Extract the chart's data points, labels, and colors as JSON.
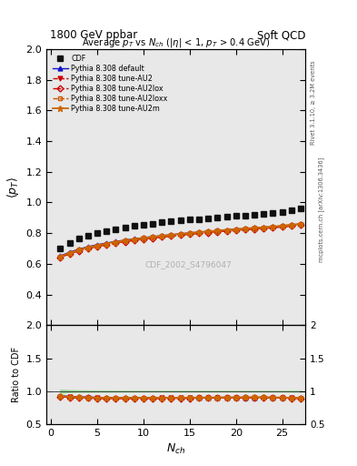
{
  "title_top": "1800 GeV ppbar",
  "title_top_right": "Soft QCD",
  "plot_title": "Average $p_T$ vs $N_{ch}$ ($|\\eta|$ < 1, $p_T$ > 0.4 GeV)",
  "xlabel": "$N_{ch}$",
  "ylabel_main": "$\\langle p_T \\rangle$",
  "ylabel_ratio": "Ratio to CDF",
  "right_label_top": "Rivet 3.1.10, ≥ 3.2M events",
  "right_label_bottom": "mcplots.cern.ch [arXiv:1306.3436]",
  "watermark": "CDF_2002_S4796047",
  "nch": [
    1,
    2,
    3,
    4,
    5,
    6,
    7,
    8,
    9,
    10,
    11,
    12,
    13,
    14,
    15,
    16,
    17,
    18,
    19,
    20,
    21,
    22,
    23,
    24,
    25,
    26,
    27
  ],
  "cdf_pt": [
    0.7,
    0.735,
    0.763,
    0.782,
    0.8,
    0.815,
    0.828,
    0.838,
    0.848,
    0.856,
    0.863,
    0.87,
    0.876,
    0.882,
    0.888,
    0.893,
    0.898,
    0.903,
    0.907,
    0.912,
    0.916,
    0.92,
    0.924,
    0.93,
    0.94,
    0.95,
    0.96
  ],
  "cdf_err": [
    0.015,
    0.01,
    0.008,
    0.007,
    0.006,
    0.006,
    0.005,
    0.005,
    0.005,
    0.004,
    0.004,
    0.004,
    0.004,
    0.004,
    0.004,
    0.004,
    0.004,
    0.004,
    0.004,
    0.004,
    0.004,
    0.004,
    0.004,
    0.005,
    0.005,
    0.006,
    0.007
  ],
  "default_pt": [
    0.652,
    0.676,
    0.696,
    0.712,
    0.725,
    0.736,
    0.746,
    0.755,
    0.763,
    0.771,
    0.778,
    0.784,
    0.79,
    0.796,
    0.802,
    0.807,
    0.812,
    0.817,
    0.822,
    0.826,
    0.83,
    0.834,
    0.838,
    0.842,
    0.848,
    0.854,
    0.86
  ],
  "au2_pt": [
    0.644,
    0.667,
    0.687,
    0.702,
    0.715,
    0.727,
    0.737,
    0.747,
    0.755,
    0.763,
    0.77,
    0.777,
    0.783,
    0.789,
    0.795,
    0.801,
    0.806,
    0.811,
    0.816,
    0.82,
    0.825,
    0.829,
    0.833,
    0.837,
    0.843,
    0.849,
    0.855
  ],
  "au2lox_pt": [
    0.642,
    0.665,
    0.685,
    0.7,
    0.713,
    0.725,
    0.735,
    0.745,
    0.753,
    0.761,
    0.768,
    0.775,
    0.781,
    0.787,
    0.793,
    0.799,
    0.804,
    0.809,
    0.814,
    0.818,
    0.823,
    0.827,
    0.831,
    0.835,
    0.841,
    0.847,
    0.853
  ],
  "au2loxx_pt": [
    0.643,
    0.666,
    0.686,
    0.701,
    0.714,
    0.726,
    0.736,
    0.746,
    0.754,
    0.762,
    0.769,
    0.776,
    0.782,
    0.788,
    0.794,
    0.8,
    0.805,
    0.81,
    0.815,
    0.819,
    0.824,
    0.828,
    0.832,
    0.836,
    0.842,
    0.848,
    0.854
  ],
  "au2m_pt": [
    0.648,
    0.672,
    0.692,
    0.708,
    0.721,
    0.733,
    0.743,
    0.753,
    0.761,
    0.769,
    0.776,
    0.783,
    0.789,
    0.795,
    0.801,
    0.807,
    0.812,
    0.817,
    0.822,
    0.826,
    0.831,
    0.835,
    0.839,
    0.843,
    0.849,
    0.855,
    0.861
  ],
  "color_cdf": "#111111",
  "color_default": "#1111cc",
  "color_au2": "#cc0000",
  "color_au2lox": "#cc0000",
  "color_au2loxx": "#cc5500",
  "color_au2m": "#cc6600",
  "ylim_main": [
    0.2,
    2.0
  ],
  "ylim_ratio": [
    0.5,
    2.0
  ],
  "xlim": [
    -0.5,
    27.5
  ],
  "yticks_main": [
    0.4,
    0.6,
    0.8,
    1.0,
    1.2,
    1.4,
    1.6,
    1.8,
    2.0
  ],
  "yticks_ratio": [
    0.5,
    1.0,
    1.5,
    2.0
  ],
  "xticks": [
    0,
    5,
    10,
    15,
    20,
    25
  ],
  "bg_color": "#e8e8e8"
}
